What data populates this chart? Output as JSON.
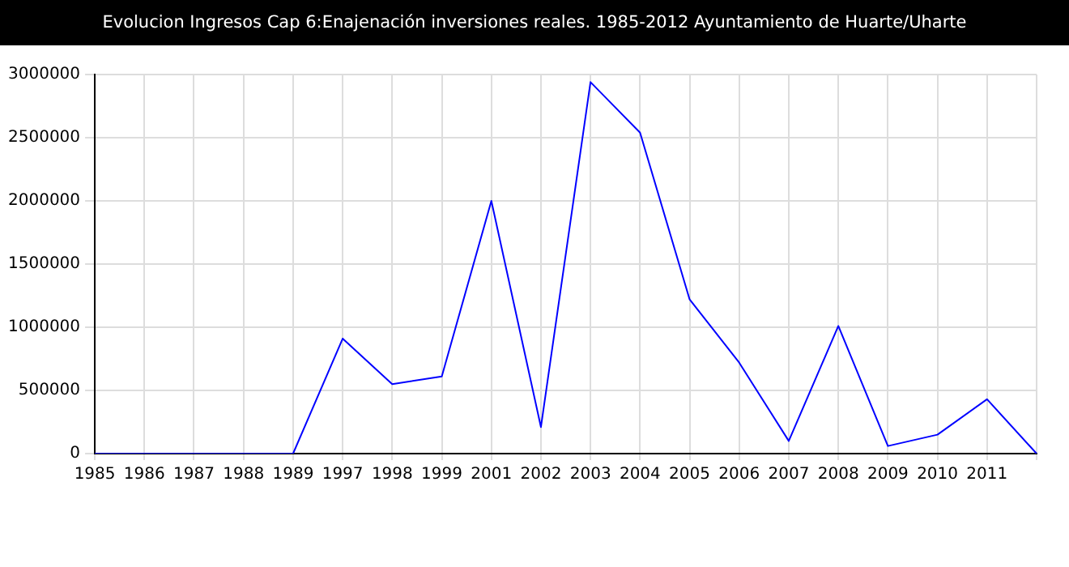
{
  "chart_data": {
    "type": "line",
    "title": "Evolucion Ingresos Cap 6:Enajenación inversiones reales. 1985-2012 Ayuntamiento de Huarte/Uharte",
    "categories": [
      "1985",
      "1986",
      "1987",
      "1988",
      "1989",
      "1997",
      "1998",
      "1999",
      "2001",
      "2002",
      "2003",
      "2004",
      "2005",
      "2006",
      "2007",
      "2008",
      "2009",
      "2010",
      "2011",
      null
    ],
    "series": [
      {
        "color": "#0000ff",
        "values": [
          0,
          0,
          0,
          0,
          0,
          910000,
          550000,
          610000,
          2000000,
          210000,
          2940000,
          2540000,
          1220000,
          720000,
          100000,
          1010000,
          60000,
          150000,
          430000,
          0
        ]
      }
    ],
    "ylim": [
      0,
      3000000
    ],
    "yticks": [
      0,
      500000,
      1000000,
      1500000,
      2000000,
      2500000,
      3000000
    ],
    "grid": true,
    "marker": "none",
    "line_style": "solid"
  }
}
